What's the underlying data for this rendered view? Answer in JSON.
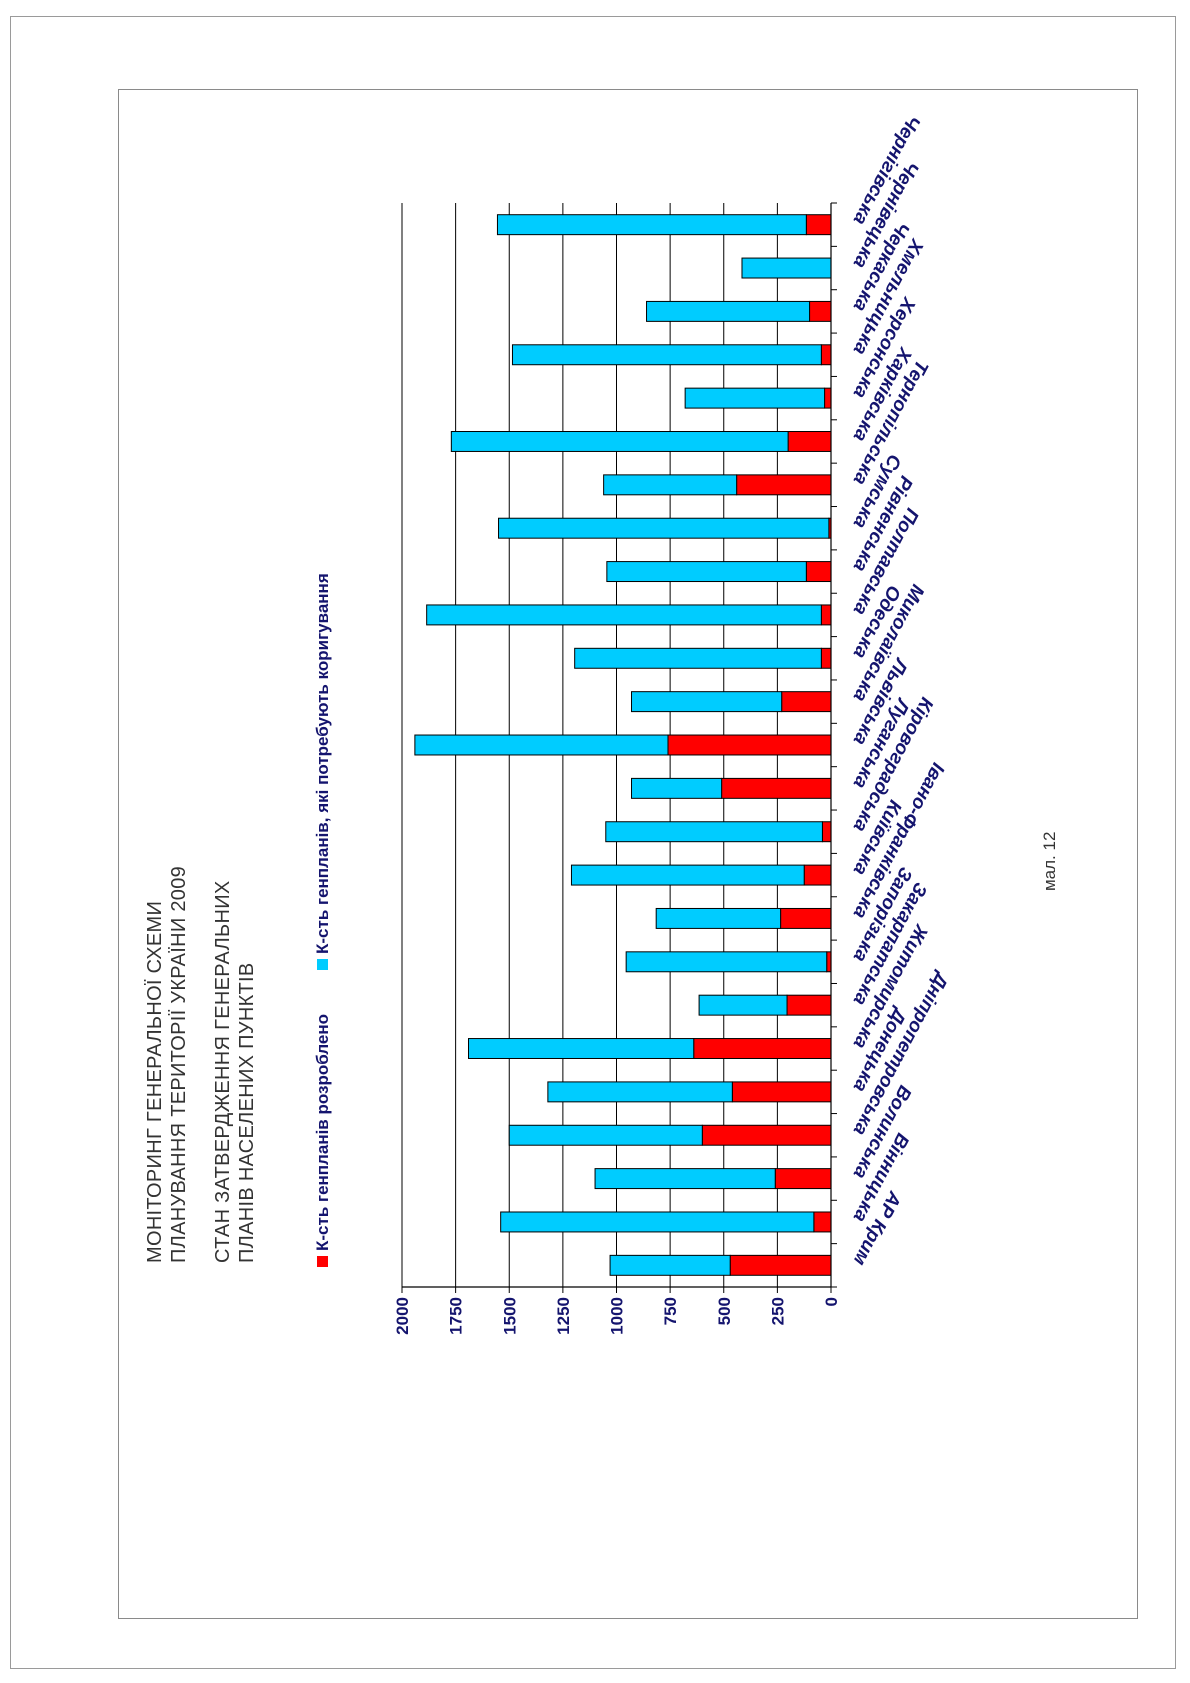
{
  "titles": {
    "line1": "МОНІТОРИНГ ГЕНЕРАЛЬНОЇ СХЕМИ",
    "line2": "ПЛАНУВАННЯ ТЕРИТОРІЇ УКРАЇНИ 2009",
    "line3": "СТАН ЗАТВЕРДЖЕННЯ ГЕНЕРАЛЬНИХ",
    "line4": "ПЛАНІВ НАСЕЛЕНИХ ПУНКТІВ"
  },
  "caption": "мал. 12",
  "colors": {
    "developed": "#ff0000",
    "needs_correction": "#00ccff",
    "text": "#14146e",
    "grid": "#000000"
  },
  "chart_data": {
    "type": "bar",
    "orientation": "vertical-columns, page rotated 90°",
    "stacked": true,
    "categories": [
      "АР Крим",
      "Вінницька",
      "Волинська",
      "Дніпропетровська",
      "Донецька",
      "Житомирська",
      "Закарпатська",
      "Запорізька",
      "Івано-Франківська",
      "Київська",
      "Кіровоградська",
      "Луганська",
      "Львівська",
      "Миколаївська",
      "Одеська",
      "Полтавська",
      "Рівненська",
      "Сумська",
      "Тернопільська",
      "Харківська",
      "Херсонська",
      "Хмельницька",
      "Черкаська",
      "Чернівецька",
      "Чернігівська"
    ],
    "series": [
      {
        "name": "К-сть генпланів розроблено",
        "color": "#ff0000",
        "values": [
          470,
          80,
          260,
          600,
          460,
          640,
          205,
          20,
          235,
          125,
          40,
          510,
          760,
          230,
          45,
          45,
          115,
          10,
          440,
          200,
          30,
          45,
          100,
          0,
          115
        ]
      },
      {
        "name": "К-сть генпланів, які потребують коригування",
        "color": "#00ccff",
        "values": [
          560,
          1460,
          840,
          900,
          860,
          1050,
          410,
          935,
          580,
          1085,
          1010,
          420,
          1180,
          700,
          1150,
          1840,
          930,
          1540,
          620,
          1570,
          650,
          1440,
          760,
          415,
          1440
        ]
      }
    ],
    "ylim": [
      0,
      2000
    ],
    "yticks": [
      "0",
      "250",
      "500",
      "750",
      "1000",
      "1250",
      "1500",
      "1750",
      "2000"
    ],
    "grid": true,
    "legend": "top"
  }
}
